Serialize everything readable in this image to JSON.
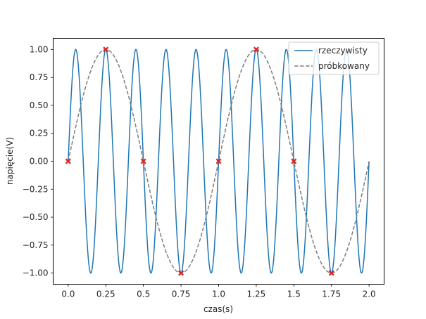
{
  "chart_data": {
    "type": "line",
    "title": "",
    "xlabel": "czas(s)",
    "ylabel": "napięcie(V)",
    "xlim": [
      -0.1,
      2.1
    ],
    "ylim": [
      -1.1,
      1.1
    ],
    "x_ticks": [
      0.0,
      0.25,
      0.5,
      0.75,
      1.0,
      1.25,
      1.5,
      1.75,
      2.0
    ],
    "x_tick_labels": [
      "0.0",
      "0.25",
      "0.5",
      "0.75",
      "1.0",
      "1.25",
      "1.5",
      "1.75",
      "2.0"
    ],
    "y_ticks": [
      -1.0,
      -0.75,
      -0.5,
      -0.25,
      0.0,
      0.25,
      0.5,
      0.75,
      1.0
    ],
    "y_tick_labels": [
      "−1.00",
      "−0.75",
      "−0.50",
      "−0.25",
      "0.00",
      "0.25",
      "0.50",
      "0.75",
      "1.00"
    ],
    "grid": false,
    "legend_position": "top-right",
    "series": [
      {
        "name": "rzeczywisty",
        "kind": "solid-line",
        "color": "#1f77b4",
        "function": "sin",
        "frequency_hz": 5,
        "amplitude": 1,
        "x_range": [
          0,
          2
        ]
      },
      {
        "name": "próbkowany",
        "kind": "dashed-line",
        "color": "#7f7f7f",
        "function": "sin",
        "frequency_hz": 1,
        "amplitude": 1,
        "x_range": [
          0,
          2
        ]
      }
    ],
    "samples": {
      "color": "#d62728",
      "marker": "x",
      "x": [
        0.0,
        0.25,
        0.5,
        0.75,
        1.0,
        1.25,
        1.5,
        1.75
      ],
      "y": [
        0.0,
        1.0,
        0.0,
        -1.0,
        0.0,
        1.0,
        0.0,
        -1.0
      ]
    }
  }
}
